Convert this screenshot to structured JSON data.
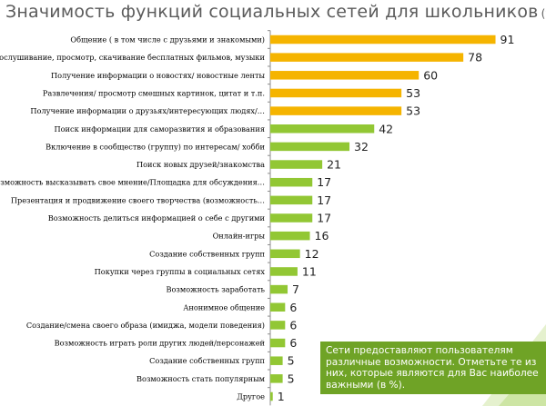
{
  "title": "Значимость функций социальных сетей для школьников",
  "title_unit": "(%)",
  "note": "Сети предоставляют пользователям различные возможности. Отметьте те из них, которые являются для Вас наиболее важными (в %).",
  "colors": {
    "orange": "#f5b400",
    "green": "#92c734",
    "note_bg": "#6fa326",
    "title": "#5b5b5b"
  },
  "chart_data": {
    "type": "bar",
    "orientation": "horizontal",
    "categories": [
      "Общение ( в том числе с друзьями и знакомыми)",
      "Прослушивание, просмотр, скачивание бесплатных фильмов, музыки",
      "Получение информации о новостях/ новостные ленты",
      "Развлечения/ просмотр смешных картинок, цитат и т.п.",
      "Получение информации о друзьях/интересующих людях/…",
      "Поиск информации для саморазвития и образования",
      "Включение в сообщество (группу) по интересам/ хобби",
      "Поиск новых друзей/знакомства",
      "Возможность высказывать свое мнение/Площадка для обсуждения…",
      "Презентация и продвижение своего творчества (возможность…",
      "Возможность делиться информацией о себе с другими",
      "Онлайн-игры",
      "Создание собственных групп",
      "Покупки через группы в социальных сетях",
      "Возможность заработать",
      "Анонимное общение",
      "Создание/смена своего образа (имиджа, модели поведения)",
      "Возможность играть роли других людей/персонажей",
      "Создание собственных групп",
      "Возможность стать популярным",
      "Другое"
    ],
    "values": [
      91,
      78,
      60,
      53,
      53,
      42,
      32,
      21,
      17,
      17,
      17,
      16,
      12,
      11,
      7,
      6,
      6,
      6,
      5,
      5,
      1
    ],
    "bar_colors": [
      "orange",
      "orange",
      "orange",
      "orange",
      "orange",
      "green",
      "green",
      "green",
      "green",
      "green",
      "green",
      "green",
      "green",
      "green",
      "green",
      "green",
      "green",
      "green",
      "green",
      "green",
      "green"
    ],
    "xlim": [
      0,
      100
    ],
    "grid": false,
    "legend": "none"
  }
}
